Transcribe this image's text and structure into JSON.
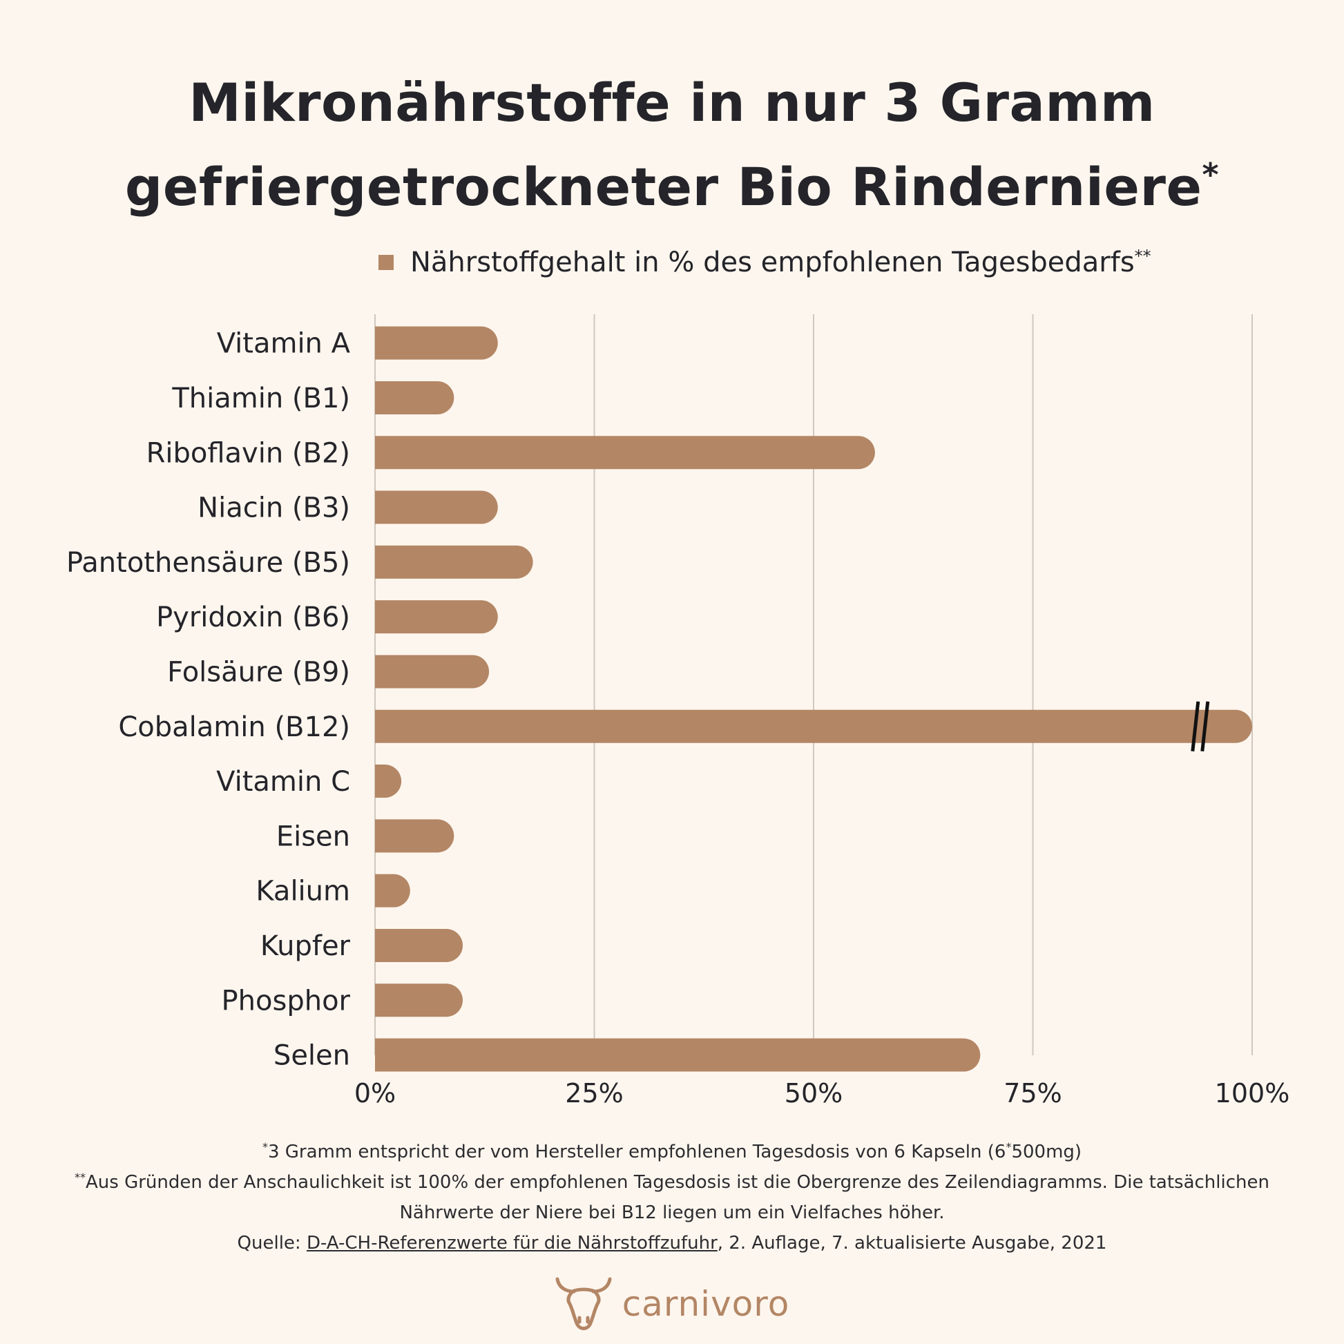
{
  "title": {
    "line1": "Mikronährstoffe in nur 3 Gramm",
    "line2": "gefriergetrockneter Bio Rinderniere",
    "mark": "*"
  },
  "legend": {
    "label": "Nährstoffgehalt in % des empfohlenen Tagesbedarfs",
    "mark": "**",
    "color": "#b38665"
  },
  "chart_data": {
    "type": "bar",
    "orientation": "horizontal",
    "categories": [
      "Vitamin A",
      "Thiamin (B1)",
      "Riboflavin (B2)",
      "Niacin (B3)",
      "Pantothensäure (B5)",
      "Pyridoxin (B6)",
      "Folsäure (B9)",
      "Cobalamin (B12)",
      "Vitamin C",
      "Eisen",
      "Kalium",
      "Kupfer",
      "Phosphor",
      "Selen"
    ],
    "series": [
      {
        "name": "Nährstoffgehalt in % des empfohlenen Tagesbedarfs",
        "values": [
          14,
          9,
          57,
          14,
          18,
          14,
          13,
          100,
          3,
          9,
          4,
          10,
          10,
          69
        ],
        "color": "#b38665"
      }
    ],
    "xlim": [
      0,
      100
    ],
    "xticks": [
      "0%",
      "25%",
      "50%",
      "75%",
      "100%"
    ],
    "grid": true,
    "legend_position": "top",
    "axis_break": {
      "category": "Cobalamin (B12)",
      "at_value": 94
    }
  },
  "footnotes": {
    "line1_mark": "*",
    "line1": "3 Gramm entspricht der vom Hersteller empfohlenen Tagesdosis von 6 Kapseln (6",
    "line1_mark2": "*",
    "line1_end": "500mg)",
    "line2_mark": "**",
    "line2": "Aus Gründen der Anschaulichkeit ist 100% der empfohlenen Tagesdosis ist die Obergrenze des Zeilendiagramms. Die tatsächlichen Nährwerte der Niere bei B12 liegen um ein Vielfaches höher.",
    "source_prefix": "Quelle: ",
    "source_link": "D-A-CH-Referenzwerte für die Nährstoffzufuhr",
    "source_suffix": ", 2. Auflage, 7. aktualisierte Ausgabe, 2021"
  },
  "brand": {
    "name": "carnivoro",
    "icon": "bull-head-icon",
    "color": "#b38665"
  }
}
